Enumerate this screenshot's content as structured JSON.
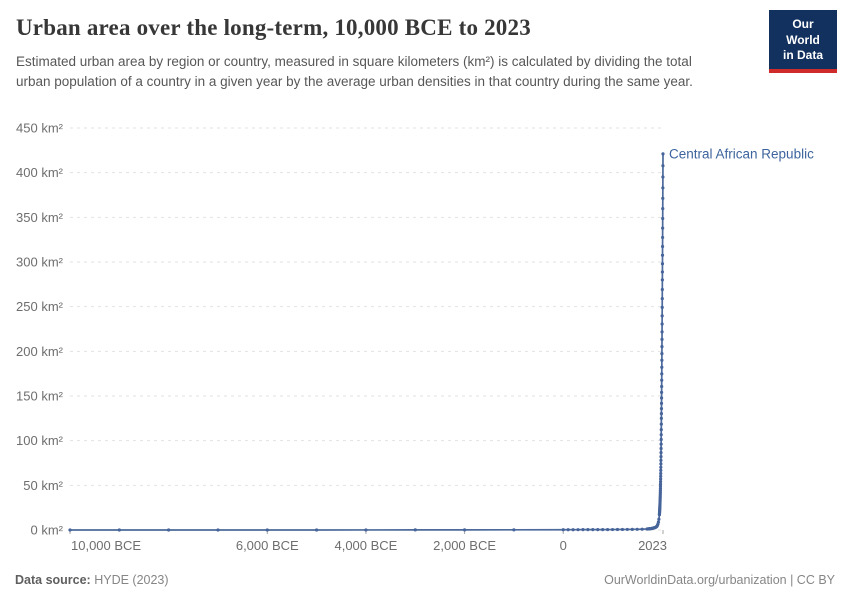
{
  "header": {
    "title": "Urban area over the long-term, 10,000 BCE to 2023",
    "subtitle": "Estimated urban area by region or country, measured in square kilometers (km²) is calculated by dividing the total urban population of a country in a given year by the average urban densities in that country during the same year.",
    "logo": {
      "line1": "Our World",
      "line2": "in Data",
      "bg_color": "#12315f",
      "accent_color": "#cf2b2b"
    }
  },
  "footer": {
    "datasource_label": "Data source:",
    "datasource_value": " HYDE (2023)",
    "attribution": "OurWorldinData.org/urbanization | CC BY"
  },
  "chart_data": {
    "type": "line",
    "title": "Urban area over the long-term, 10,000 BCE to 2023",
    "xlabel": "",
    "ylabel": "",
    "xlim": [
      -10000,
      2023
    ],
    "ylim": [
      0,
      450
    ],
    "grid": "horizontal-dashed",
    "legend_position": "end-of-line-label",
    "colors": {
      "line": "#4c6a9c",
      "marker": "#46649a",
      "entity_label": "#3d649e",
      "gridline": "#e2e2e2",
      "tick_label": "#6e6e6e",
      "tick_mark": "#a3a3a3"
    },
    "y_ticks": [
      {
        "value": 0,
        "label": "0 km²"
      },
      {
        "value": 50,
        "label": "50 km²"
      },
      {
        "value": 100,
        "label": "100 km²"
      },
      {
        "value": 150,
        "label": "150 km²"
      },
      {
        "value": 200,
        "label": "200 km²"
      },
      {
        "value": 250,
        "label": "250 km²"
      },
      {
        "value": 300,
        "label": "300 km²"
      },
      {
        "value": 350,
        "label": "350 km²"
      },
      {
        "value": 400,
        "label": "400 km²"
      },
      {
        "value": 450,
        "label": "450 km²"
      }
    ],
    "x_ticks": [
      {
        "year": -10000,
        "label": "10,000 BCE",
        "anchor": "start"
      },
      {
        "year": -6000,
        "label": "6,000 BCE",
        "anchor": "middle"
      },
      {
        "year": -4000,
        "label": "4,000 BCE",
        "anchor": "middle"
      },
      {
        "year": -2000,
        "label": "2,000 BCE",
        "anchor": "middle"
      },
      {
        "year": 0,
        "label": "0",
        "anchor": "middle"
      },
      {
        "year": 2023,
        "label": "2023",
        "anchor": "end"
      }
    ],
    "series": [
      {
        "name": "Central African Republic",
        "points": [
          [
            -10000,
            0
          ],
          [
            -9000,
            0
          ],
          [
            -8000,
            0
          ],
          [
            -7000,
            0
          ],
          [
            -6000,
            0
          ],
          [
            -5000,
            0.01
          ],
          [
            -4000,
            0.05
          ],
          [
            -3000,
            0.1
          ],
          [
            -2000,
            0.15
          ],
          [
            -1000,
            0.2
          ],
          [
            0,
            0.3
          ],
          [
            100,
            0.32
          ],
          [
            200,
            0.34
          ],
          [
            300,
            0.36
          ],
          [
            400,
            0.38
          ],
          [
            500,
            0.4
          ],
          [
            600,
            0.42
          ],
          [
            700,
            0.44
          ],
          [
            800,
            0.46
          ],
          [
            900,
            0.48
          ],
          [
            1000,
            0.5
          ],
          [
            1100,
            0.55
          ],
          [
            1200,
            0.6
          ],
          [
            1300,
            0.65
          ],
          [
            1400,
            0.7
          ],
          [
            1500,
            0.8
          ],
          [
            1600,
            0.9
          ],
          [
            1700,
            1.1
          ],
          [
            1710,
            1.15
          ],
          [
            1720,
            1.2
          ],
          [
            1730,
            1.25
          ],
          [
            1740,
            1.3
          ],
          [
            1750,
            1.4
          ],
          [
            1760,
            1.45
          ],
          [
            1770,
            1.55
          ],
          [
            1780,
            1.6
          ],
          [
            1790,
            1.7
          ],
          [
            1800,
            1.8
          ],
          [
            1810,
            1.9
          ],
          [
            1820,
            2.0
          ],
          [
            1830,
            2.2
          ],
          [
            1840,
            2.35
          ],
          [
            1850,
            2.5
          ],
          [
            1860,
            2.7
          ],
          [
            1870,
            3.0
          ],
          [
            1880,
            3.3
          ],
          [
            1890,
            3.7
          ],
          [
            1900,
            4.2
          ],
          [
            1910,
            5.2
          ],
          [
            1920,
            6.6
          ],
          [
            1930,
            8.8
          ],
          [
            1940,
            12
          ],
          [
            1950,
            17
          ],
          [
            1951,
            17.8
          ],
          [
            1952,
            18.6
          ],
          [
            1953,
            19.5
          ],
          [
            1954,
            20.4
          ],
          [
            1955,
            21.4
          ],
          [
            1956,
            22.4
          ],
          [
            1957,
            23.5
          ],
          [
            1958,
            24.6
          ],
          [
            1959,
            25.8
          ],
          [
            1960,
            27
          ],
          [
            1961,
            28.4
          ],
          [
            1962,
            29.8
          ],
          [
            1963,
            31.3
          ],
          [
            1964,
            32.8
          ],
          [
            1965,
            34.5
          ],
          [
            1966,
            36.2
          ],
          [
            1967,
            38
          ],
          [
            1968,
            39.9
          ],
          [
            1969,
            41.9
          ],
          [
            1970,
            44
          ],
          [
            1971,
            46.3
          ],
          [
            1972,
            48.8
          ],
          [
            1973,
            51.4
          ],
          [
            1974,
            54.2
          ],
          [
            1975,
            57.1
          ],
          [
            1976,
            60.1
          ],
          [
            1977,
            63.3
          ],
          [
            1978,
            66.7
          ],
          [
            1979,
            70.2
          ],
          [
            1980,
            74
          ],
          [
            1981,
            78
          ],
          [
            1982,
            82.2
          ],
          [
            1983,
            86.6
          ],
          [
            1984,
            91.2
          ],
          [
            1985,
            96.1
          ],
          [
            1986,
            101.3
          ],
          [
            1987,
            106.7
          ],
          [
            1988,
            112.4
          ],
          [
            1989,
            118.5
          ],
          [
            1990,
            125
          ],
          [
            1991,
            130.3
          ],
          [
            1992,
            135.9
          ],
          [
            1993,
            141.7
          ],
          [
            1994,
            147.8
          ],
          [
            1995,
            154.1
          ],
          [
            1996,
            160.7
          ],
          [
            1997,
            167.6
          ],
          [
            1998,
            174.8
          ],
          [
            1999,
            182.2
          ],
          [
            2000,
            190
          ],
          [
            2001,
            197.5
          ],
          [
            2002,
            205.3
          ],
          [
            2003,
            213.4
          ],
          [
            2004,
            221.8
          ],
          [
            2005,
            230.6
          ],
          [
            2006,
            239.7
          ],
          [
            2007,
            249.2
          ],
          [
            2008,
            259
          ],
          [
            2009,
            269.2
          ],
          [
            2010,
            280
          ],
          [
            2011,
            288.9
          ],
          [
            2012,
            298.1
          ],
          [
            2013,
            307.6
          ],
          [
            2014,
            317.4
          ],
          [
            2015,
            327.5
          ],
          [
            2016,
            337.9
          ],
          [
            2017,
            348.7
          ],
          [
            2018,
            359.8
          ],
          [
            2019,
            371.2
          ],
          [
            2020,
            383
          ],
          [
            2021,
            395.2
          ],
          [
            2022,
            407.8
          ],
          [
            2023,
            421
          ]
        ]
      }
    ]
  }
}
